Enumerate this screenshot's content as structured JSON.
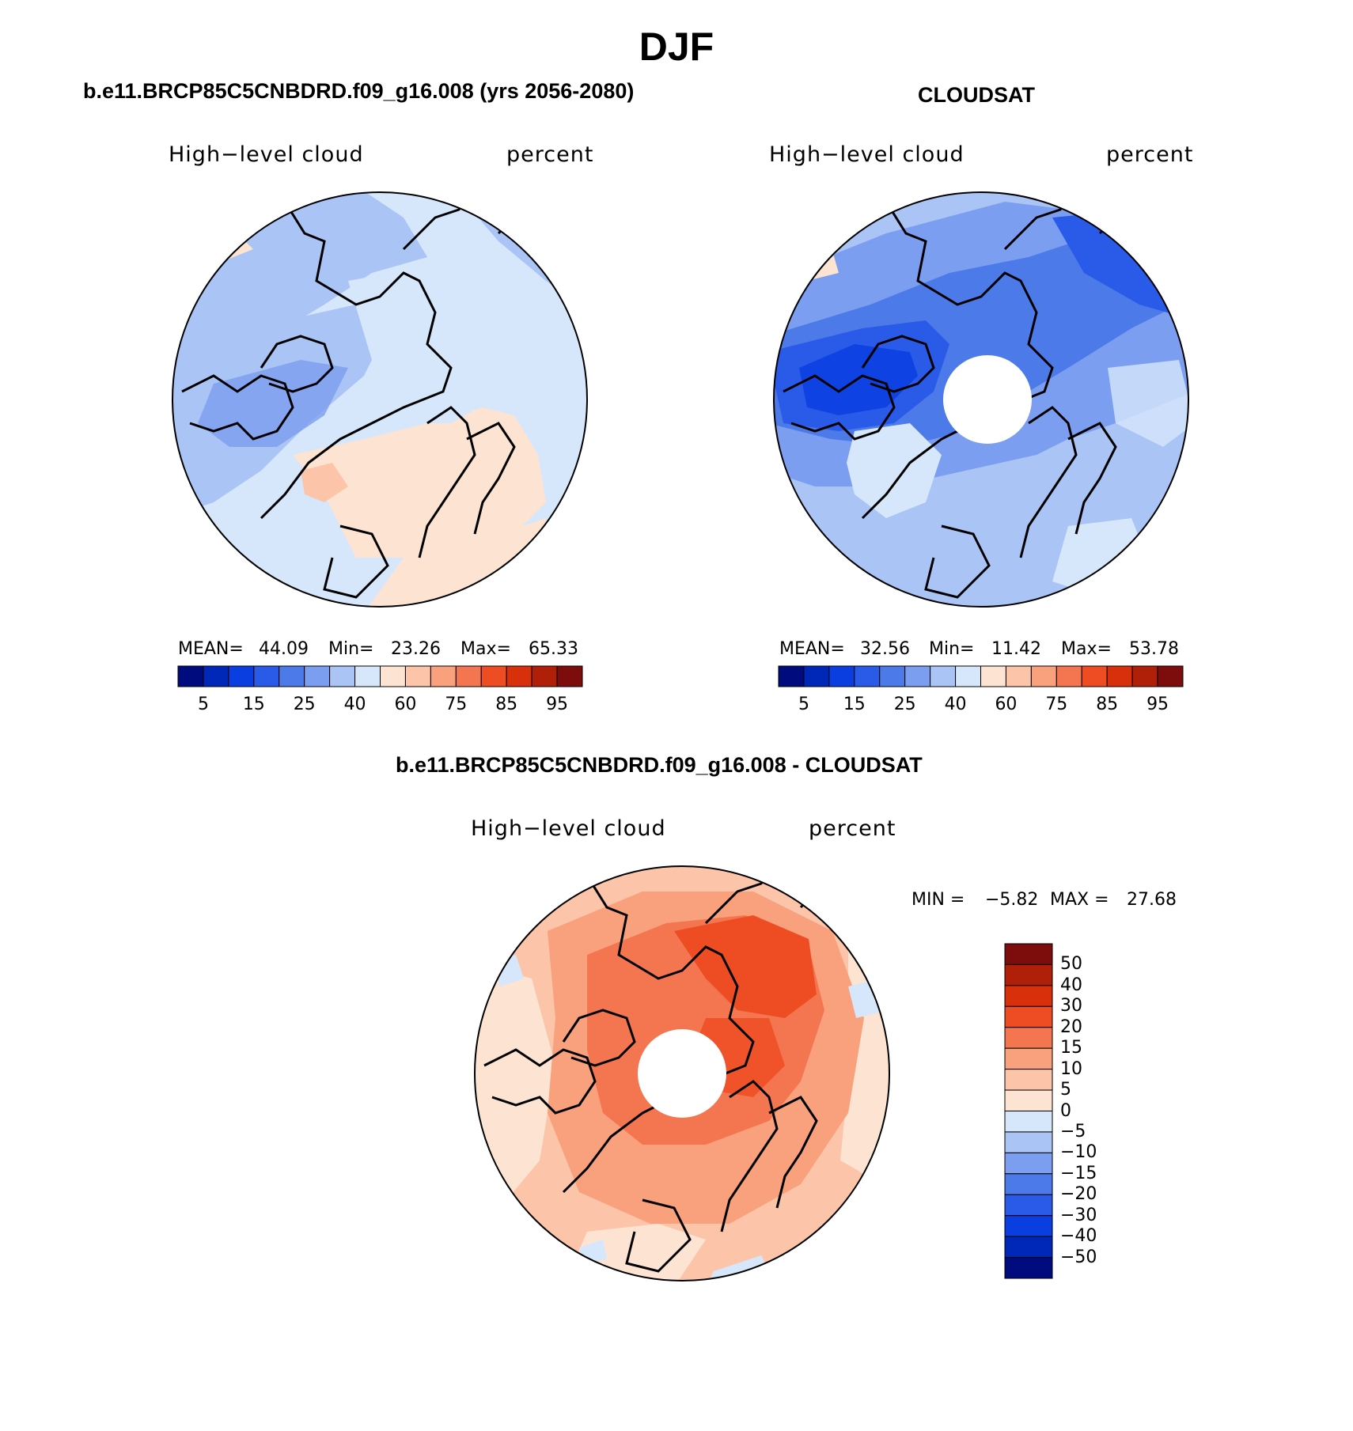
{
  "title": "DJF",
  "panels": [
    {
      "title": "b.e11.BRCP85C5CNBDRD.f09_g16.008 (yrs 2056-2080)",
      "left_label": "High−level cloud",
      "right_label": "percent",
      "stats": {
        "mean_label": "MEAN=",
        "mean": "44.09",
        "min_label": "Min=",
        "min": "23.26",
        "max_label": "Max=",
        "max": "65.33"
      },
      "pole_hole": false
    },
    {
      "title": "CLOUDSAT",
      "left_label": "High−level cloud",
      "right_label": "percent",
      "stats": {
        "mean_label": "MEAN=",
        "mean": "32.56",
        "min_label": "Min=",
        "min": "11.42",
        "max_label": "Max=",
        "max": "53.78"
      },
      "pole_hole": true
    }
  ],
  "colorbar_abs": {
    "ticks": [
      "5",
      "15",
      "25",
      "40",
      "60",
      "75",
      "85",
      "95"
    ],
    "colors": [
      "#000c7d",
      "#0028b8",
      "#0a3ee0",
      "#2a5be8",
      "#4c7ae8",
      "#7c9ef0",
      "#a9c4f5",
      "#d6e6fb",
      "#fde4d2",
      "#fcc4a8",
      "#f9a07c",
      "#f47650",
      "#ee4c22",
      "#d9300c",
      "#b02008",
      "#7d0c0c"
    ]
  },
  "diff_panel": {
    "title": "b.e11.BRCP85C5CNBDRD.f09_g16.008 - CLOUDSAT",
    "left_label": "High−level cloud",
    "right_label": "percent",
    "min_label": "MIN =",
    "min": "−5.82",
    "max_label": "MAX =",
    "max": "27.68"
  },
  "colorbar_diff": {
    "labels": [
      "50",
      "40",
      "30",
      "20",
      "15",
      "10",
      "5",
      "0",
      "−5",
      "−10",
      "−15",
      "−20",
      "−30",
      "−40",
      "−50"
    ],
    "colors": [
      "#7d0c0c",
      "#b02008",
      "#d9300c",
      "#ee4c22",
      "#f47650",
      "#f9a07c",
      "#fcc4a8",
      "#fde4d2",
      "#d6e6fb",
      "#a9c4f5",
      "#7c9ef0",
      "#4c7ae8",
      "#2a5be8",
      "#0a3ee0",
      "#0028b8",
      "#000c7d"
    ]
  },
  "map_colors": {
    "model": {
      "base": "#d6e6fb",
      "light_blue": "#a9c4f5",
      "blue": "#7c9ef0",
      "peach": "#fde4d2",
      "salmon": "#fcc4a8"
    },
    "cloudsat": {
      "base": "#a9c4f5",
      "blue": "#7c9ef0",
      "mid": "#4c7ae8",
      "dark": "#2a5be8",
      "darker": "#0a3ee0",
      "pale": "#d6e6fb",
      "peach": "#fde4d2"
    },
    "diff": {
      "base": "#fcc4a8",
      "mid": "#f9a07c",
      "strong": "#f47650",
      "strongest": "#ee4c22",
      "pale": "#fde4d2",
      "blue": "#d6e6fb"
    },
    "coast": "#000000"
  }
}
